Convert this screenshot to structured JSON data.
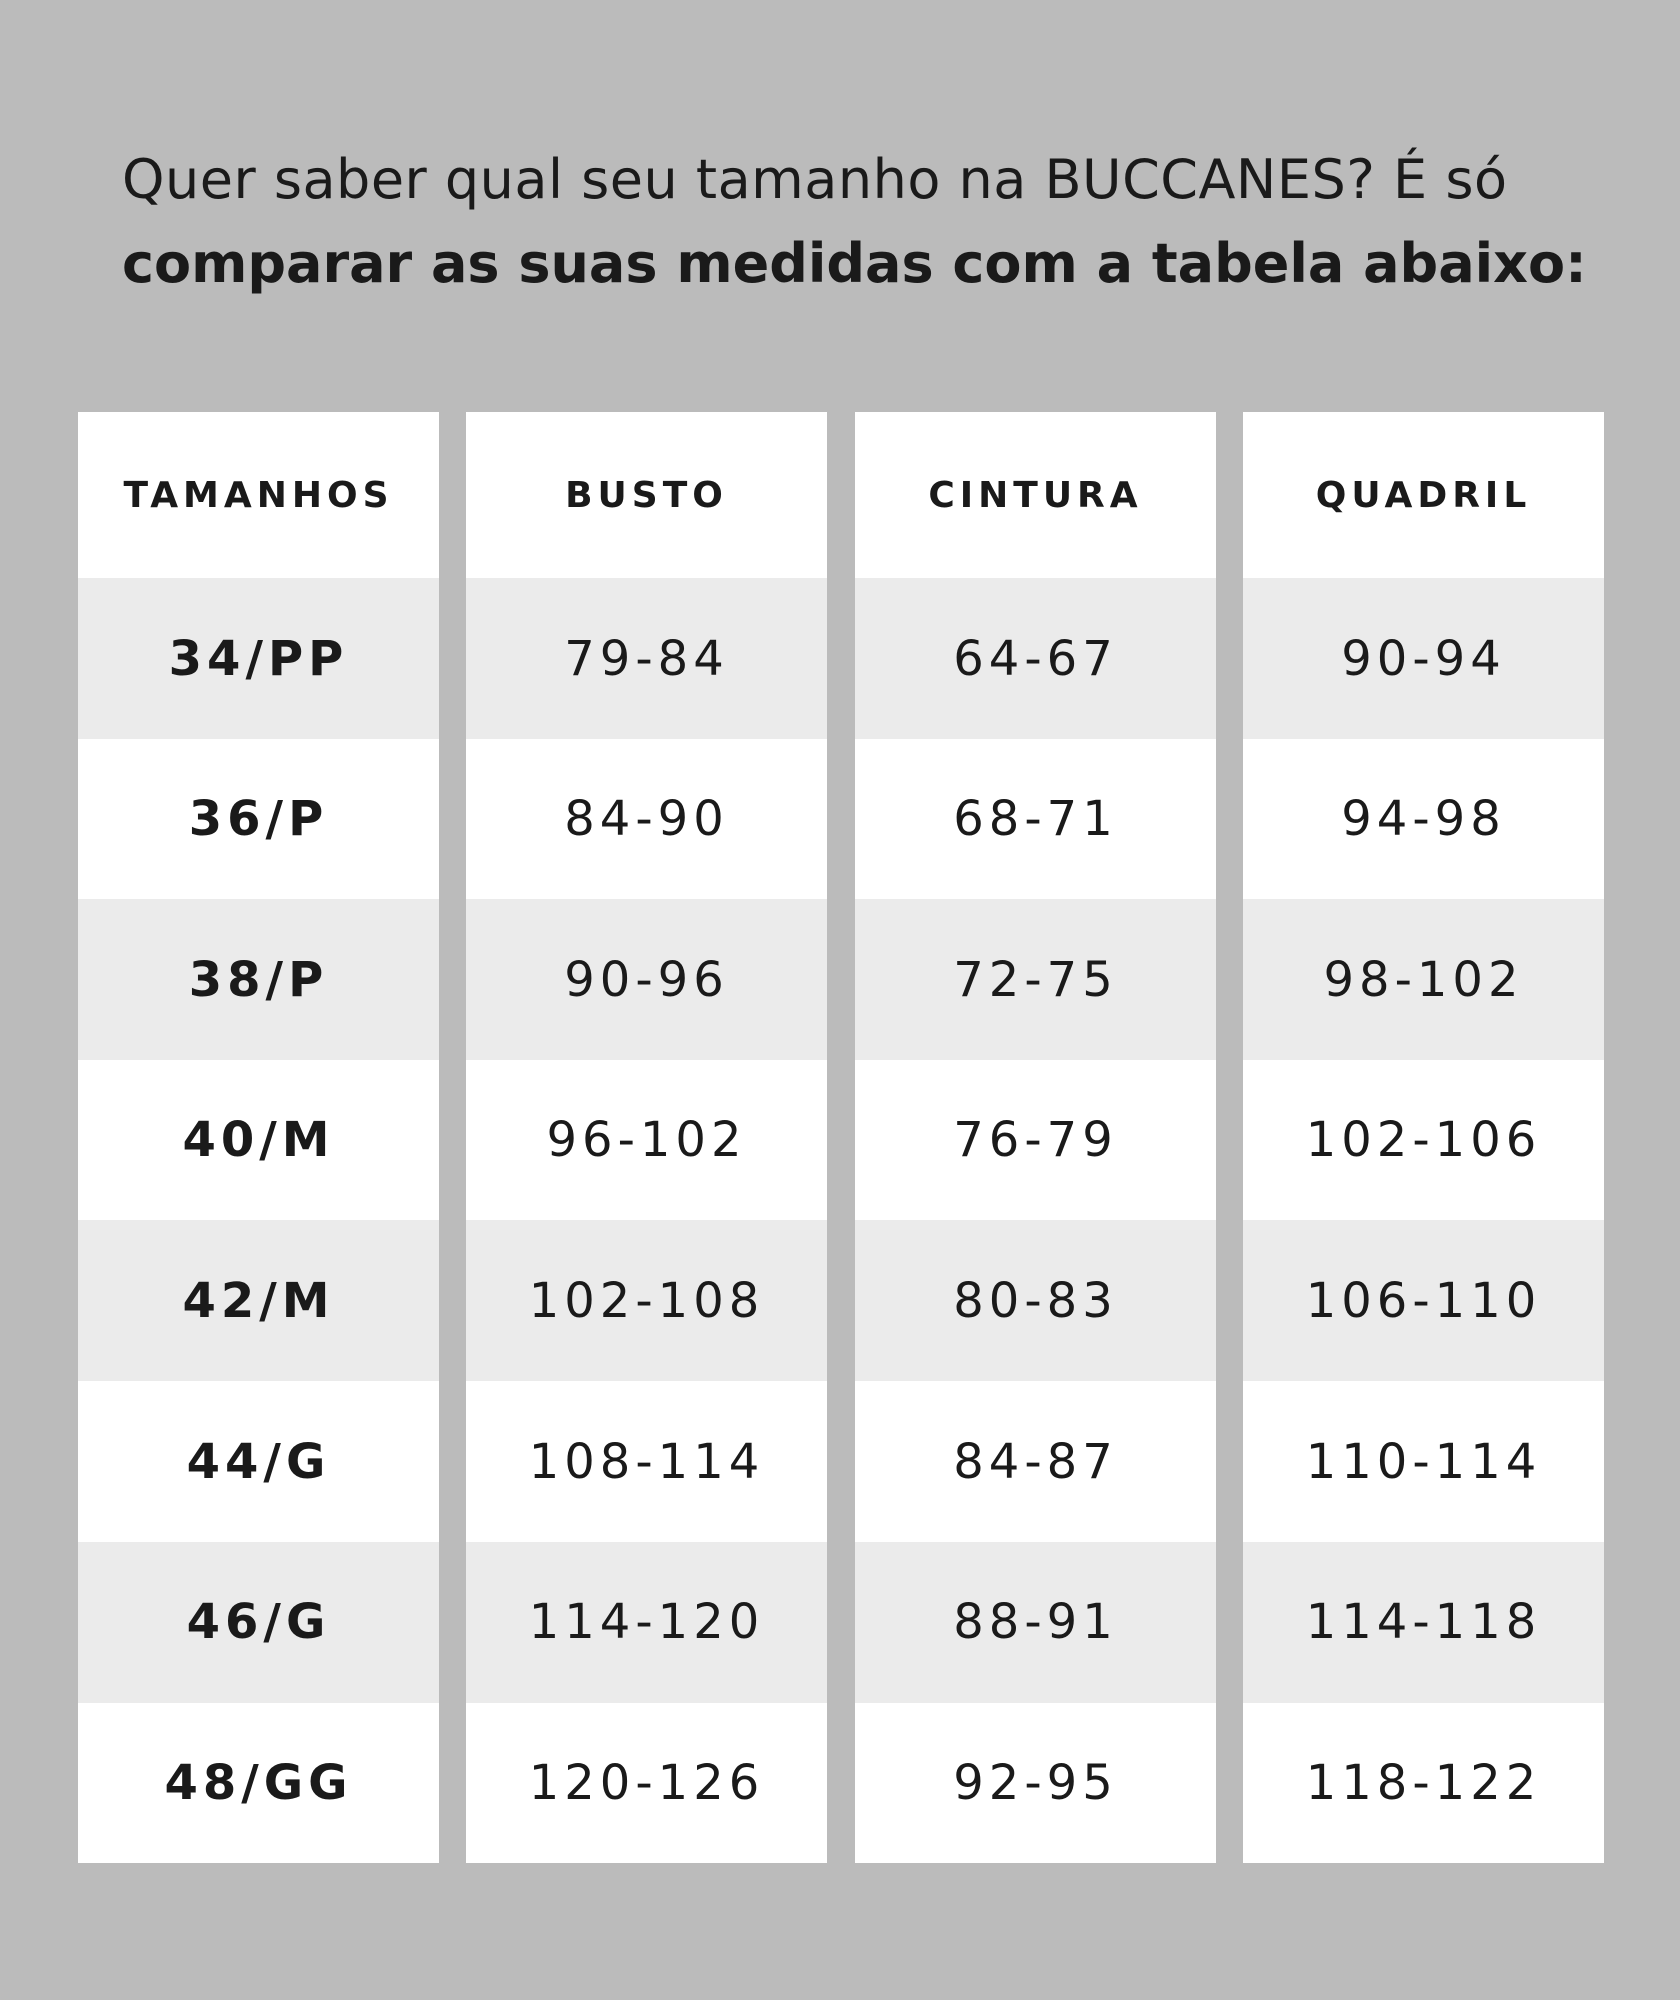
{
  "header": {
    "line1": "Quer saber qual seu tamanho na BUCCANES? É só",
    "line2": "comparar as suas medidas com a tabela abaixo:"
  },
  "table": {
    "headers": [
      "TAMANHOS",
      "BUSTO",
      "CINTURA",
      "QUADRIL"
    ],
    "rows": [
      [
        "34/PP",
        "79-84",
        "64-67",
        "90-94"
      ],
      [
        "36/P",
        "84-90",
        "68-71",
        "94-98"
      ],
      [
        "38/P",
        "90-96",
        "72-75",
        "98-102"
      ],
      [
        "40/M",
        "96-102",
        "76-79",
        "102-106"
      ],
      [
        "42/M",
        "102-108",
        "80-83",
        "106-110"
      ],
      [
        "44/G",
        "108-114",
        "84-87",
        "110-114"
      ],
      [
        "46/G",
        "114-120",
        "88-91",
        "114-118"
      ],
      [
        "48/GG",
        "120-126",
        "92-95",
        "118-122"
      ]
    ]
  }
}
